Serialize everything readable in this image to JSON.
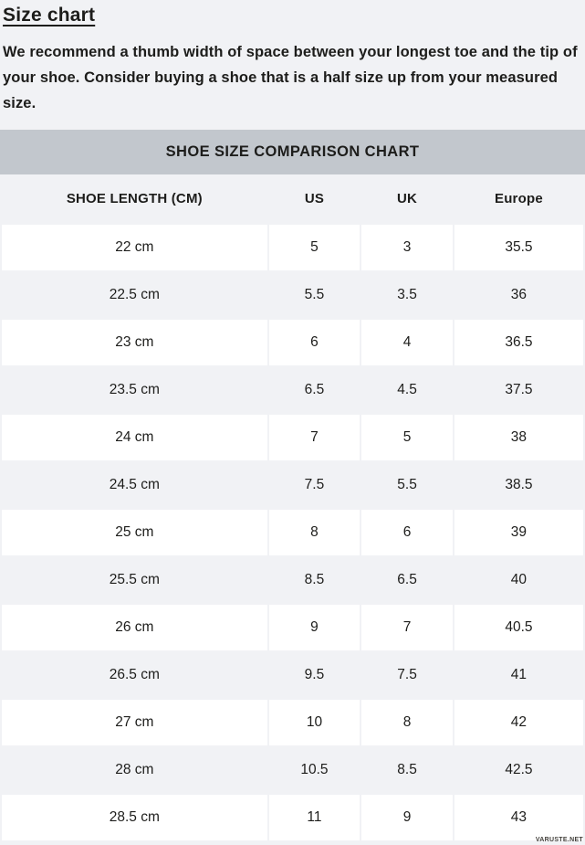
{
  "page": {
    "title": "Size chart",
    "intro": "We recommend a thumb width of space between your longest toe and the tip of your shoe. Consider buying a shoe that is a half size up from your measured size.",
    "watermark": "VARUSTE.NET"
  },
  "chart_data": {
    "type": "table",
    "title": "SHOE SIZE COMPARISON CHART",
    "columns": [
      "SHOE LENGTH (CM)",
      "US",
      "UK",
      "Europe"
    ],
    "rows": [
      [
        "22 cm",
        "5",
        "3",
        "35.5"
      ],
      [
        "22.5 cm",
        "5.5",
        "3.5",
        "36"
      ],
      [
        "23 cm",
        "6",
        "4",
        "36.5"
      ],
      [
        "23.5 cm",
        "6.5",
        "4.5",
        "37.5"
      ],
      [
        "24 cm",
        "7",
        "5",
        "38"
      ],
      [
        "24.5 cm",
        "7.5",
        "5.5",
        "38.5"
      ],
      [
        "25 cm",
        "8",
        "6",
        "39"
      ],
      [
        "25.5 cm",
        "8.5",
        "6.5",
        "40"
      ],
      [
        "26 cm",
        "9",
        "7",
        "40.5"
      ],
      [
        "26.5 cm",
        "9.5",
        "7.5",
        "41"
      ],
      [
        "27 cm",
        "10",
        "8",
        "42"
      ],
      [
        "28 cm",
        "10.5",
        "8.5",
        "42.5"
      ],
      [
        "28.5 cm",
        "11",
        "9",
        "43"
      ]
    ]
  },
  "colors": {
    "page_background": "#f1f2f5",
    "table_title_bar": "#c2c7cd",
    "row_highlight": "#ffffff",
    "text": "#1d1d1b"
  }
}
